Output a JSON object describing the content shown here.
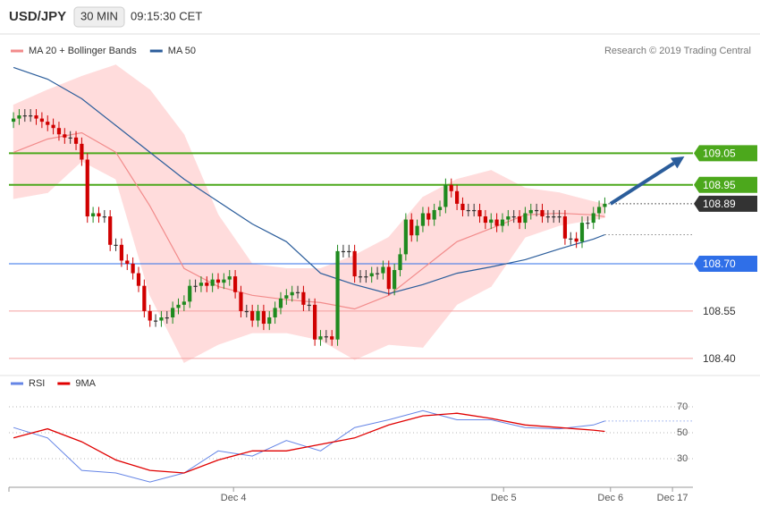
{
  "header": {
    "symbol": "USD/JPY",
    "interval": "30 MIN",
    "time": "09:15:30 CET"
  },
  "chart_data": [
    {
      "type": "candlestick",
      "source": "Research © 2019 Trading Central",
      "up_color": "#1f8a1f",
      "down_color": "#d00000",
      "doji_color": "#333333",
      "xlim": [
        -0.8,
        119.5
      ],
      "ylim": [
        108.36,
        109.36
      ],
      "xticks": [
        {
          "value": 38.7,
          "label": "Dec 4"
        },
        {
          "value": 86.2,
          "label": "Dec 5"
        },
        {
          "value": 105,
          "label": "Dec 6"
        },
        {
          "value": 115.9,
          "label": "Dec 17"
        }
      ],
      "open": [
        109.15,
        109.16,
        109.17,
        109.17,
        109.17,
        109.16,
        109.15,
        109.14,
        109.13,
        109.11,
        109.1,
        109.1,
        109.08,
        109.03,
        108.85,
        108.86,
        108.85,
        108.85,
        108.76,
        108.76,
        108.71,
        108.7,
        108.67,
        108.63,
        108.55,
        108.52,
        108.52,
        108.53,
        108.53,
        108.56,
        108.57,
        108.58,
        108.63,
        108.63,
        108.64,
        108.63,
        108.65,
        108.64,
        108.65,
        108.66,
        108.61,
        108.55,
        108.55,
        108.52,
        108.55,
        108.51,
        108.53,
        108.56,
        108.59,
        108.6,
        108.61,
        108.61,
        108.57,
        108.57,
        108.46,
        108.47,
        108.47,
        108.46,
        108.74,
        108.74,
        108.74,
        108.66,
        108.66,
        108.66,
        108.67,
        108.67,
        108.69,
        108.62,
        108.68,
        108.73,
        108.84,
        108.79,
        108.82,
        108.86,
        108.84,
        108.87,
        108.88,
        108.95,
        108.93,
        108.89,
        108.87,
        108.87,
        108.87,
        108.85,
        108.83,
        108.84,
        108.82,
        108.84,
        108.85,
        108.85,
        108.83,
        108.86,
        108.87,
        108.87,
        108.85,
        108.85,
        108.85,
        108.85,
        108.78,
        108.78,
        108.77,
        108.83,
        108.83,
        108.86,
        108.88
      ],
      "high": [
        109.18,
        109.19,
        109.19,
        109.19,
        109.19,
        109.18,
        109.17,
        109.16,
        109.15,
        109.13,
        109.12,
        109.12,
        109.1,
        109.05,
        108.88,
        108.88,
        108.87,
        108.87,
        108.78,
        108.78,
        108.73,
        108.72,
        108.69,
        108.65,
        108.57,
        108.54,
        108.55,
        108.55,
        108.58,
        108.59,
        108.6,
        108.65,
        108.65,
        108.66,
        108.66,
        108.67,
        108.67,
        108.67,
        108.68,
        108.68,
        108.63,
        108.57,
        108.57,
        108.57,
        108.57,
        108.55,
        108.58,
        108.61,
        108.62,
        108.63,
        108.63,
        108.63,
        108.59,
        108.59,
        108.49,
        108.49,
        108.49,
        108.76,
        108.76,
        108.76,
        108.76,
        108.68,
        108.68,
        108.69,
        108.69,
        108.71,
        108.71,
        108.7,
        108.75,
        108.86,
        108.86,
        108.84,
        108.88,
        108.88,
        108.89,
        108.9,
        108.97,
        108.97,
        108.95,
        108.91,
        108.89,
        108.89,
        108.89,
        108.87,
        108.86,
        108.86,
        108.86,
        108.87,
        108.87,
        108.87,
        108.88,
        108.89,
        108.89,
        108.89,
        108.87,
        108.87,
        108.87,
        108.87,
        108.8,
        108.8,
        108.85,
        108.85,
        108.88,
        108.9,
        108.91
      ],
      "low": [
        109.13,
        109.14,
        109.15,
        109.15,
        109.14,
        109.13,
        109.12,
        109.11,
        109.09,
        109.08,
        109.08,
        109.06,
        109.01,
        108.83,
        108.83,
        108.83,
        108.83,
        108.74,
        108.74,
        108.69,
        108.68,
        108.65,
        108.61,
        108.53,
        108.5,
        108.5,
        108.5,
        108.51,
        108.51,
        108.54,
        108.55,
        108.56,
        108.61,
        108.61,
        108.61,
        108.61,
        108.62,
        108.62,
        108.63,
        108.59,
        108.53,
        108.53,
        108.5,
        108.5,
        108.49,
        108.49,
        108.51,
        108.54,
        108.57,
        108.58,
        108.59,
        108.55,
        108.55,
        108.44,
        108.44,
        108.45,
        108.44,
        108.44,
        108.72,
        108.72,
        108.64,
        108.64,
        108.64,
        108.64,
        108.65,
        108.65,
        108.6,
        108.6,
        108.66,
        108.71,
        108.77,
        108.77,
        108.8,
        108.82,
        108.82,
        108.85,
        108.86,
        108.91,
        108.87,
        108.85,
        108.85,
        108.85,
        108.83,
        108.81,
        108.81,
        108.8,
        108.8,
        108.82,
        108.83,
        108.81,
        108.81,
        108.84,
        108.85,
        108.83,
        108.83,
        108.83,
        108.83,
        108.76,
        108.76,
        108.75,
        108.75,
        108.81,
        108.81,
        108.84,
        108.86
      ],
      "close": [
        109.16,
        109.17,
        109.17,
        109.17,
        109.16,
        109.15,
        109.14,
        109.13,
        109.11,
        109.1,
        109.1,
        109.08,
        109.03,
        108.85,
        108.86,
        108.85,
        108.85,
        108.76,
        108.76,
        108.71,
        108.7,
        108.67,
        108.63,
        108.55,
        108.52,
        108.52,
        108.53,
        108.53,
        108.56,
        108.57,
        108.58,
        108.63,
        108.63,
        108.64,
        108.63,
        108.65,
        108.64,
        108.65,
        108.66,
        108.61,
        108.55,
        108.55,
        108.52,
        108.55,
        108.51,
        108.53,
        108.56,
        108.59,
        108.6,
        108.61,
        108.61,
        108.57,
        108.57,
        108.46,
        108.47,
        108.47,
        108.46,
        108.74,
        108.74,
        108.74,
        108.66,
        108.66,
        108.66,
        108.67,
        108.67,
        108.69,
        108.62,
        108.68,
        108.73,
        108.84,
        108.79,
        108.82,
        108.86,
        108.84,
        108.87,
        108.88,
        108.95,
        108.93,
        108.89,
        108.87,
        108.87,
        108.87,
        108.85,
        108.83,
        108.84,
        108.82,
        108.84,
        108.85,
        108.85,
        108.83,
        108.86,
        108.87,
        108.87,
        108.85,
        108.85,
        108.85,
        108.85,
        108.78,
        108.78,
        108.77,
        108.83,
        108.83,
        108.86,
        108.88,
        108.89
      ],
      "overlays": [
        {
          "name": "MA 20 + Bollinger Bands",
          "color": "#f28b8b",
          "band_color": "#ffdcdc",
          "x": [
            0,
            6,
            12,
            18,
            24,
            30,
            36,
            42,
            48,
            54,
            60,
            66,
            72,
            78,
            84,
            90,
            96,
            102,
            104
          ],
          "values": [
            109.053,
            109.095,
            109.115,
            109.053,
            108.883,
            108.685,
            108.628,
            108.6,
            108.586,
            108.577,
            108.557,
            108.6,
            108.685,
            108.77,
            108.812,
            108.855,
            108.86,
            108.855,
            108.849
          ],
          "upper": [
            109.203,
            109.251,
            109.294,
            109.33,
            109.251,
            109.109,
            108.855,
            108.699,
            108.685,
            108.685,
            108.727,
            108.784,
            108.911,
            108.968,
            108.996,
            108.94,
            108.925,
            108.897,
            108.889
          ],
          "lower": [
            108.906,
            108.925,
            109.025,
            108.968,
            108.6,
            108.387,
            108.444,
            108.481,
            108.481,
            108.458,
            108.396,
            108.444,
            108.435,
            108.571,
            108.628,
            108.784,
            108.821,
            108.84,
            108.846
          ]
        },
        {
          "name": "MA 50",
          "color": "#2b5d9b",
          "extend": true,
          "x": [
            0,
            6,
            12,
            18,
            24,
            30,
            36,
            42,
            48,
            54,
            60,
            66,
            72,
            78,
            84,
            90,
            96,
            102,
            104
          ],
          "values": [
            109.322,
            109.285,
            109.223,
            109.138,
            109.053,
            108.968,
            108.897,
            108.826,
            108.77,
            108.67,
            108.634,
            108.605,
            108.634,
            108.67,
            108.69,
            108.713,
            108.747,
            108.778,
            108.792
          ]
        }
      ],
      "levels": [
        {
          "value": 109.05,
          "color": "#4ca81c",
          "boxed": true
        },
        {
          "value": 108.95,
          "color": "#4ca81c",
          "boxed": true
        },
        {
          "value": 108.89,
          "color": "#333333",
          "boxed": true,
          "dashed": true
        },
        {
          "value": 108.7,
          "label": "108.70",
          "color": "#2f6fe8",
          "boxed": true
        },
        {
          "value": 108.55,
          "color": "#f4a0a0",
          "boxed": false
        },
        {
          "value": 108.4,
          "label": "108.40",
          "color": "#f4a0a0",
          "boxed": false
        }
      ],
      "arrow": {
        "color": "#2b5d9b",
        "x": [
          105,
          118
        ],
        "values": [
          108.89,
          109.04
        ]
      }
    },
    {
      "type": "line",
      "ylim": [
        11.4,
        87.2
      ],
      "yticks": [
        30,
        50,
        70
      ],
      "grid": true,
      "x": [
        0,
        6,
        12,
        18,
        24,
        30,
        36,
        42,
        48,
        54,
        60,
        66,
        72,
        78,
        84,
        90,
        96,
        102,
        104
      ],
      "series": [
        {
          "name": "RSI",
          "color": "#6585e6",
          "extend": true,
          "values": [
            54,
            46,
            21,
            19,
            12,
            19,
            36,
            32,
            44,
            36,
            54,
            60,
            67,
            60,
            60,
            54,
            53,
            56,
            59
          ]
        },
        {
          "name": "9MA",
          "color": "#e00000",
          "values": [
            46,
            53,
            43,
            29,
            21,
            19,
            29,
            36,
            36,
            41,
            46,
            56,
            63,
            65,
            61,
            56,
            54,
            52,
            51
          ]
        }
      ]
    }
  ]
}
